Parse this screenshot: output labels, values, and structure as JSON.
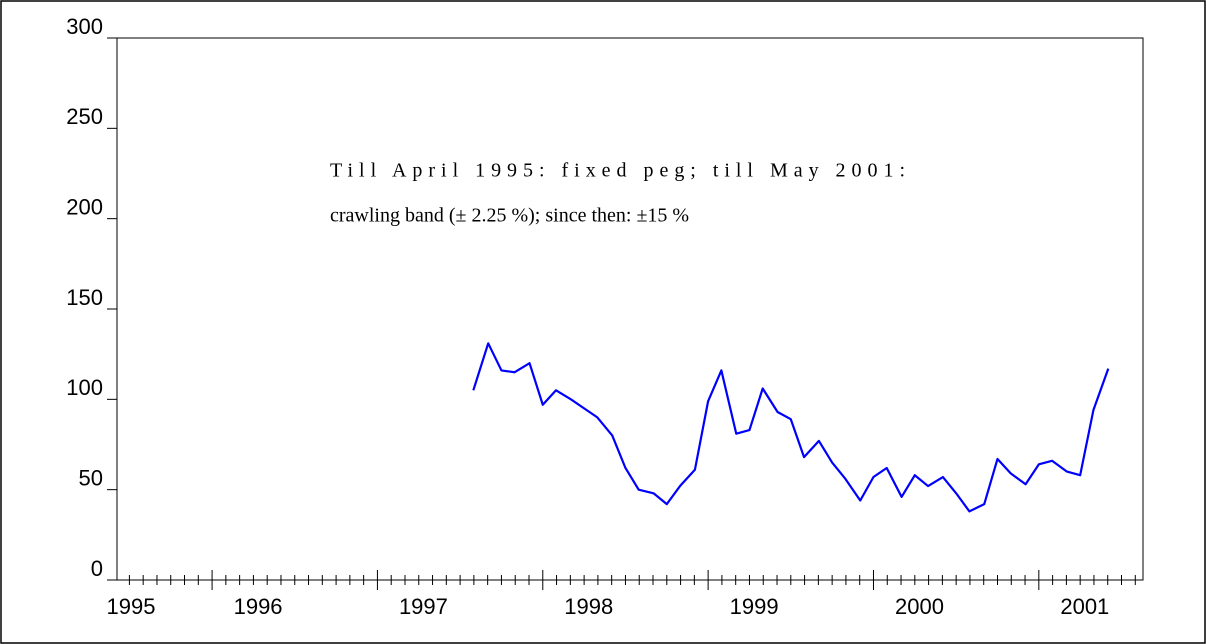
{
  "chart_data": {
    "type": "line",
    "annotation": [
      "Till April 1995: fixed peg; till May 2001:",
      "crawling band (± 2.25 %); since then: ±15 %"
    ],
    "x": [
      1997.58,
      1997.67,
      1997.75,
      1997.83,
      1997.92,
      1998.0,
      1998.08,
      1998.17,
      1998.25,
      1998.33,
      1998.42,
      1998.5,
      1998.58,
      1998.67,
      1998.75,
      1998.83,
      1998.92,
      1999.0,
      1999.08,
      1999.17,
      1999.25,
      1999.33,
      1999.42,
      1999.5,
      1999.58,
      1999.67,
      1999.75,
      1999.83,
      1999.92,
      2000.0,
      2000.08,
      2000.17,
      2000.25,
      2000.33,
      2000.42,
      2000.5,
      2000.58,
      2000.67,
      2000.75,
      2000.83,
      2000.92,
      2001.0,
      2001.08,
      2001.17,
      2001.25,
      2001.33,
      2001.42
    ],
    "series": [
      {
        "color": "#0000ff",
        "values": [
          105,
          131,
          116,
          115,
          120,
          97,
          105,
          100,
          95,
          90,
          80,
          62,
          50,
          48,
          42,
          52,
          61,
          99,
          116,
          81,
          83,
          106,
          93,
          89,
          68,
          77,
          65,
          56,
          44,
          57,
          62,
          46,
          58,
          52,
          57,
          48,
          38,
          42,
          67,
          59,
          53,
          64,
          66,
          60,
          58,
          94,
          117
        ]
      }
    ],
    "xlim": [
      1995.425,
      2001.63
    ],
    "xticks": [
      1995,
      1996,
      1997,
      1998,
      1999,
      2000,
      2001
    ],
    "ylim": [
      0,
      300
    ],
    "yticks": [
      0,
      50,
      100,
      150,
      200,
      250,
      300
    ]
  }
}
